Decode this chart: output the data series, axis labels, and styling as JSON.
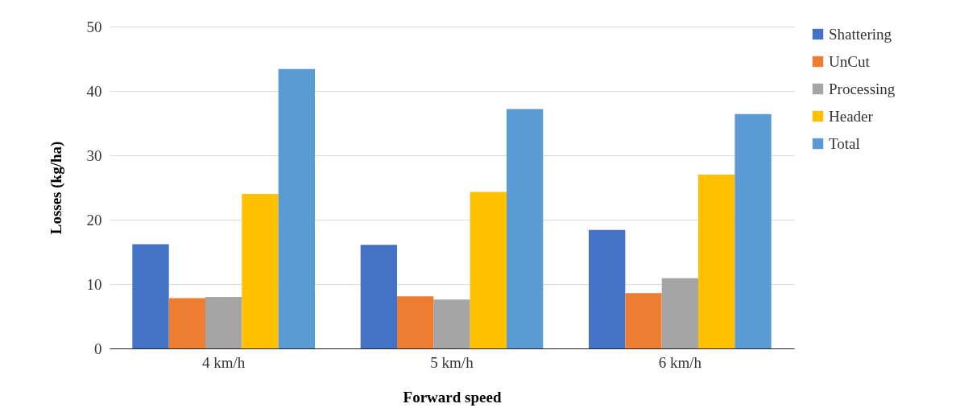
{
  "chart_data": {
    "type": "bar",
    "xlabel": "Forward speed",
    "ylabel": "Losses (kg/ha)",
    "categories": [
      "4 km/h",
      "5 km/h",
      "6 km/h"
    ],
    "series": [
      {
        "name": "Shattering",
        "color": "#4472c4",
        "values": [
          16.2,
          16.1,
          18.4
        ]
      },
      {
        "name": "UnCut",
        "color": "#ed7d31",
        "values": [
          7.8,
          8.1,
          8.6
        ]
      },
      {
        "name": "Processing",
        "color": "#a5a5a5",
        "values": [
          8.0,
          7.6,
          10.9
        ]
      },
      {
        "name": "Header",
        "color": "#ffc000",
        "values": [
          24.0,
          24.3,
          27.0
        ]
      },
      {
        "name": "Total",
        "color": "#5b9bd5",
        "values": [
          43.4,
          37.2,
          36.4
        ]
      }
    ],
    "ylim": [
      0,
      50
    ],
    "yticks": [
      0,
      10,
      20,
      30,
      40,
      50
    ],
    "grid": "y",
    "legend": "right"
  }
}
